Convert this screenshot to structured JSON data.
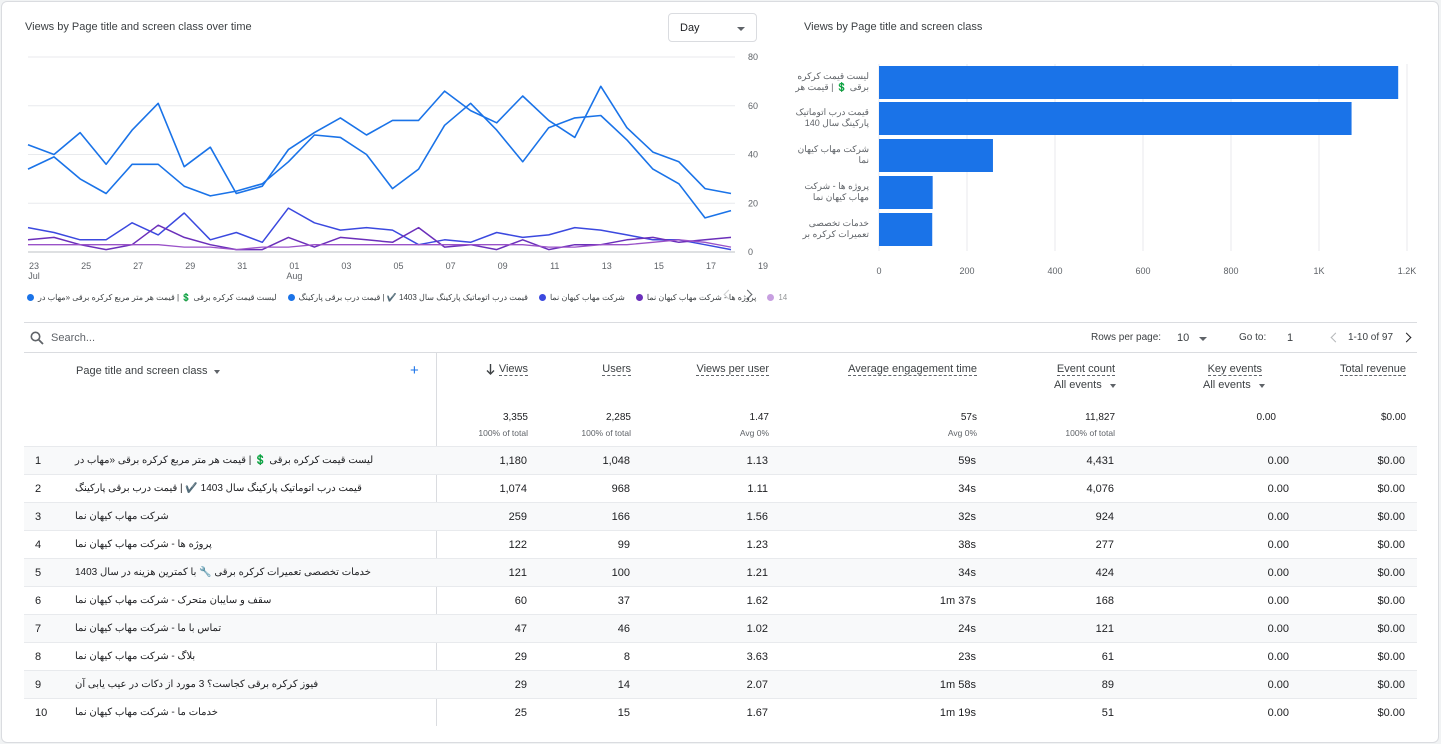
{
  "line_chart": {
    "title": "Views by Page title and screen class over time",
    "granularity": "Day",
    "y_ticks": [
      "80",
      "60",
      "40",
      "20",
      "0"
    ],
    "x_ticks": [
      {
        "day": "23",
        "month": "Jul"
      },
      {
        "day": "25",
        "month": ""
      },
      {
        "day": "27",
        "month": ""
      },
      {
        "day": "29",
        "month": ""
      },
      {
        "day": "31",
        "month": ""
      },
      {
        "day": "01",
        "month": "Aug"
      },
      {
        "day": "03",
        "month": ""
      },
      {
        "day": "05",
        "month": ""
      },
      {
        "day": "07",
        "month": ""
      },
      {
        "day": "09",
        "month": ""
      },
      {
        "day": "11",
        "month": ""
      },
      {
        "day": "13",
        "month": ""
      },
      {
        "day": "15",
        "month": ""
      },
      {
        "day": "17",
        "month": ""
      },
      {
        "day": "19",
        "month": ""
      }
    ],
    "legend": [
      {
        "label": "لیست قیمت کرکره برقی 💲 | قیمت هر متر مربع کرکره برقی «مهاب در",
        "color": "#1a73e8"
      },
      {
        "label": "قیمت درب اتوماتیک پارکینگ سال 1403 ✔️ | قیمت درب برقی پارکینگ",
        "color": "#1a73e8"
      },
      {
        "label": "شرکت مهاب کیهان نما",
        "color": "#3b49df"
      },
      {
        "label": "پروژه ها - شرکت مهاب کیهان نما",
        "color": "#6b2fba"
      },
      {
        "label": "14",
        "color": "#9a52c8"
      }
    ]
  },
  "bar_chart": {
    "title": "Views by Page title and screen class",
    "x_ticks": [
      "0",
      "200",
      "400",
      "600",
      "800",
      "1K",
      "1.2K"
    ],
    "labels": [
      [
        "لیست قیمت کرکره",
        "برقی 💲 | قیمت هر"
      ],
      [
        "قیمت درب اتوماتیک",
        "پارکینگ سال 140"
      ],
      [
        "شرکت مهاب کیهان",
        "نما"
      ],
      [
        "پروژه ها - شرکت",
        "مهاب کیهان نما"
      ],
      [
        "خدمات تخصصی",
        "تعمیرات کرکره بر"
      ]
    ]
  },
  "chart_data": [
    {
      "type": "line",
      "title": "Views by Page title and screen class over time",
      "x": [
        "Jul 23",
        "Jul 24",
        "Jul 25",
        "Jul 26",
        "Jul 27",
        "Jul 28",
        "Jul 29",
        "Jul 30",
        "Jul 31",
        "Aug 01",
        "Aug 02",
        "Aug 03",
        "Aug 04",
        "Aug 05",
        "Aug 06",
        "Aug 07",
        "Aug 08",
        "Aug 09",
        "Aug 10",
        "Aug 11",
        "Aug 12",
        "Aug 13",
        "Aug 14",
        "Aug 15",
        "Aug 16",
        "Aug 17",
        "Aug 18",
        "Aug 19"
      ],
      "ylim": [
        0,
        80
      ],
      "series": [
        {
          "name": "لیست قیمت کرکره برقی 💲 | قیمت هر متر مربع کرکره برقی «مهاب در",
          "color": "#1a73e8",
          "values": [
            44,
            40,
            49,
            36,
            50,
            61,
            35,
            43,
            24,
            27,
            42,
            49,
            55,
            48,
            54,
            54,
            66,
            58,
            53,
            64,
            54,
            47,
            68,
            51,
            41,
            37,
            26,
            24
          ]
        },
        {
          "name": "قیمت درب اتوماتیک پارکینگ سال 1403 ✔️ | قیمت درب برقی پارکینگ",
          "color": "#1a73e8",
          "values": [
            34,
            39,
            30,
            24,
            36,
            36,
            27,
            23,
            25,
            28,
            37,
            48,
            47,
            40,
            26,
            34,
            52,
            61,
            50,
            37,
            51,
            55,
            56,
            46,
            34,
            28,
            14,
            17
          ]
        },
        {
          "name": "شرکت مهاب کیهان نما",
          "color": "#3b49df",
          "values": [
            10,
            8,
            5,
            5,
            12,
            7,
            16,
            5,
            8,
            4,
            18,
            12,
            9,
            10,
            9,
            3,
            5,
            4,
            8,
            6,
            7,
            10,
            9,
            7,
            5,
            5,
            3,
            1
          ]
        },
        {
          "name": "پروژه ها - شرکت مهاب کیهان نما",
          "color": "#6b2fba",
          "values": [
            5,
            6,
            3,
            1,
            3,
            11,
            6,
            3,
            1,
            1,
            6,
            2,
            6,
            5,
            4,
            10,
            2,
            3,
            1,
            5,
            1,
            3,
            3,
            5,
            6,
            4,
            5,
            6
          ]
        },
        {
          "name": "14",
          "color": "#9a52c8",
          "values": [
            3,
            3,
            3,
            3,
            3,
            3,
            2,
            2,
            1,
            2,
            2,
            3,
            3,
            3,
            3,
            3,
            3,
            3,
            3,
            3,
            2,
            2,
            3,
            3,
            4,
            5,
            4,
            2
          ]
        }
      ]
    },
    {
      "type": "bar",
      "title": "Views by Page title and screen class",
      "categories": [
        "لیست قیمت کرکره برقی 💲 | قیمت هر",
        "قیمت درب اتوماتیک پارکینگ سال 140",
        "شرکت مهاب کیهان نما",
        "پروژه ها - شرکت مهاب کیهان نما",
        "خدمات تخصصی تعمیرات کرکره بر"
      ],
      "values": [
        1180,
        1074,
        259,
        122,
        121
      ],
      "xlim": [
        0,
        1200
      ],
      "color": "#1a73e8"
    }
  ],
  "search": {
    "placeholder": "Search..."
  },
  "pagination": {
    "rows_label": "Rows per page:",
    "rows_value": "10",
    "goto_label": "Go to:",
    "goto_value": "1",
    "range": "1-10 of 97"
  },
  "table": {
    "dimension_header": "Page title and screen class",
    "add_symbol": "+",
    "columns": [
      {
        "label": "Views",
        "sub": "",
        "total": "3,355",
        "total_sub": "100% of total"
      },
      {
        "label": "Users",
        "sub": "",
        "total": "2,285",
        "total_sub": "100% of total"
      },
      {
        "label": "Views per user",
        "sub": "",
        "total": "1.47",
        "total_sub": "Avg 0%"
      },
      {
        "label": "Average engagement time",
        "sub": "",
        "total": "57s",
        "total_sub": "Avg 0%"
      },
      {
        "label": "Event count",
        "sub": "All events",
        "total": "11,827",
        "total_sub": "100% of total"
      },
      {
        "label": "Key events",
        "sub": "All events",
        "total": "0.00",
        "total_sub": ""
      },
      {
        "label": "Total revenue",
        "sub": "",
        "total": "$0.00",
        "total_sub": ""
      }
    ],
    "rows": [
      {
        "n": "1",
        "title": "لیست قیمت کرکره برقی 💲 | قیمت هر متر مربع کرکره برقی «مهاب در",
        "views": "1,180",
        "users": "1,048",
        "vpu": "1.13",
        "aet": "59s",
        "events": "4,431",
        "key": "0.00",
        "rev": "$0.00"
      },
      {
        "n": "2",
        "title": "قیمت درب اتوماتیک پارکینگ سال 1403 ✔️ | قیمت درب برقی پارکینگ",
        "views": "1,074",
        "users": "968",
        "vpu": "1.11",
        "aet": "34s",
        "events": "4,076",
        "key": "0.00",
        "rev": "$0.00"
      },
      {
        "n": "3",
        "title": "شرکت مهاب کیهان نما",
        "views": "259",
        "users": "166",
        "vpu": "1.56",
        "aet": "32s",
        "events": "924",
        "key": "0.00",
        "rev": "$0.00"
      },
      {
        "n": "4",
        "title": "پروژه ها - شرکت مهاب کیهان نما",
        "views": "122",
        "users": "99",
        "vpu": "1.23",
        "aet": "38s",
        "events": "277",
        "key": "0.00",
        "rev": "$0.00"
      },
      {
        "n": "5",
        "title": "خدمات تخصصی تعمیرات کرکره برقی 🔧 با کمترین هزینه در سال 1403",
        "views": "121",
        "users": "100",
        "vpu": "1.21",
        "aet": "34s",
        "events": "424",
        "key": "0.00",
        "rev": "$0.00"
      },
      {
        "n": "6",
        "title": "سقف و سایبان متحرک - شرکت مهاب کیهان نما",
        "views": "60",
        "users": "37",
        "vpu": "1.62",
        "aet": "1m 37s",
        "events": "168",
        "key": "0.00",
        "rev": "$0.00"
      },
      {
        "n": "7",
        "title": "تماس با ما - شرکت مهاب کیهان نما",
        "views": "47",
        "users": "46",
        "vpu": "1.02",
        "aet": "24s",
        "events": "121",
        "key": "0.00",
        "rev": "$0.00"
      },
      {
        "n": "8",
        "title": "بلاگ - شرکت مهاب کیهان نما",
        "views": "29",
        "users": "8",
        "vpu": "3.63",
        "aet": "23s",
        "events": "61",
        "key": "0.00",
        "rev": "$0.00"
      },
      {
        "n": "9",
        "title": "فیوز کرکره برقی کجاست؟ 3 مورد از دکات در عیب یابی آن",
        "views": "29",
        "users": "14",
        "vpu": "2.07",
        "aet": "1m 58s",
        "events": "89",
        "key": "0.00",
        "rev": "$0.00"
      },
      {
        "n": "10",
        "title": "خدمات ما - شرکت مهاب کیهان نما",
        "views": "25",
        "users": "15",
        "vpu": "1.67",
        "aet": "1m 19s",
        "events": "51",
        "key": "0.00",
        "rev": "$0.00"
      }
    ]
  }
}
